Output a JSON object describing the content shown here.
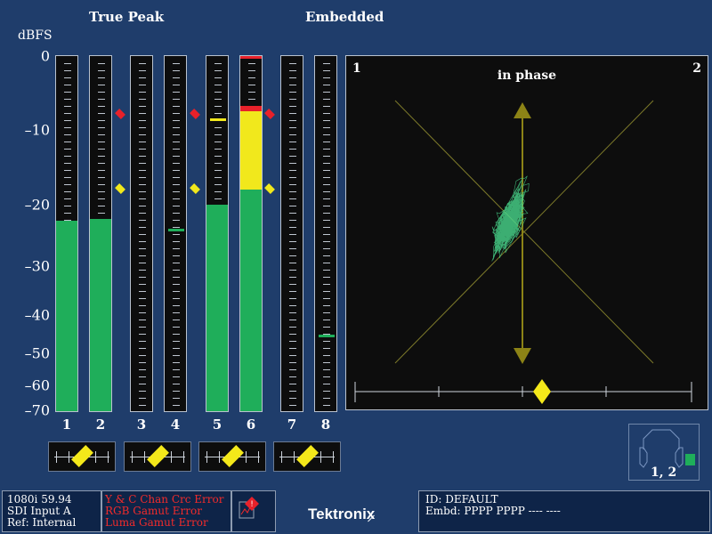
{
  "header": {
    "true_peak": "True Peak",
    "embedded": "Embedded",
    "unit": "dBFS"
  },
  "scale": [
    "0",
    "–10",
    "–20",
    "–30",
    "–40",
    "–50",
    "–60",
    "–70"
  ],
  "meters": [
    {
      "channel": "1",
      "level_db": -22.5
    },
    {
      "channel": "2",
      "level_db": -22.3
    },
    {
      "channel": "3",
      "level_db": null
    },
    {
      "channel": "4",
      "level_db": null,
      "peak_db": -24
    },
    {
      "channel": "5",
      "level_db": -20,
      "peak_db": -8.5
    },
    {
      "channel": "6",
      "level_db": -18,
      "yellow_top_db": -7.5,
      "red_top_db": -7.0,
      "clip": true
    },
    {
      "channel": "7",
      "level_db": null
    },
    {
      "channel": "8",
      "level_db": null,
      "peak_db": -45
    }
  ],
  "phase_pairs": [
    "1-2",
    "3-4",
    "5-6",
    "7-8"
  ],
  "lissajous": {
    "left_label": "1",
    "right_label": "2",
    "title": "in phase"
  },
  "speaker": {
    "label": "1, 2"
  },
  "status": {
    "format": "1080i 59.94",
    "input": "SDI Input A",
    "ref": "Ref: Internal",
    "errors": [
      "Y & C Chan Crc Error",
      "RGB Gamut Error",
      "Luma Gamut Error"
    ],
    "brand": "Tektronix",
    "id": "ID: DEFAULT",
    "embd": "Embd: PPPP PPPP ---- ----"
  },
  "colors": {
    "green": "#1fae5a",
    "yellow": "#f1e81c",
    "red": "#e8212a",
    "background": "#1f3d6b",
    "trace": "#49d78c"
  }
}
